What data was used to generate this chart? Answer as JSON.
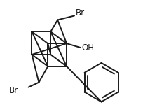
{
  "background_color": "#ffffff",
  "line_color": "#1a1a1a",
  "line_width": 1.4,
  "label_fontsize": 8.5,
  "br1_label": "Br",
  "oh_label": "OH",
  "br2_label": "Br"
}
